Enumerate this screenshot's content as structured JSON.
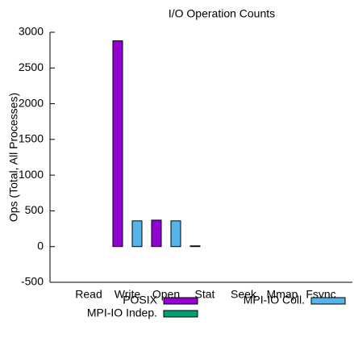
{
  "chart_data": {
    "type": "bar",
    "title": "I/O Operation Counts",
    "ylabel": "Ops (Total, All Processes)",
    "categories": [
      "Read",
      "Write",
      "Open",
      "Stat",
      "Seek",
      "Mmap",
      "Fsync"
    ],
    "series": [
      {
        "name": "POSIX",
        "color": "#9400d3",
        "values": [
          0,
          2880,
          370,
          10,
          0,
          0,
          0
        ]
      },
      {
        "name": "MPI-IO Indep.",
        "color": "#009e73",
        "values": [
          0,
          0,
          0,
          0,
          0,
          0,
          0
        ]
      },
      {
        "name": "MPI-IO Coll.",
        "color": "#56b4e9",
        "values": [
          0,
          360,
          360,
          0,
          0,
          0,
          0
        ]
      }
    ],
    "ylim": [
      -500,
      3000
    ],
    "yticks": [
      -500,
      0,
      500,
      1000,
      1500,
      2000,
      2500,
      3000
    ],
    "grid": false,
    "legend": "bottom"
  }
}
